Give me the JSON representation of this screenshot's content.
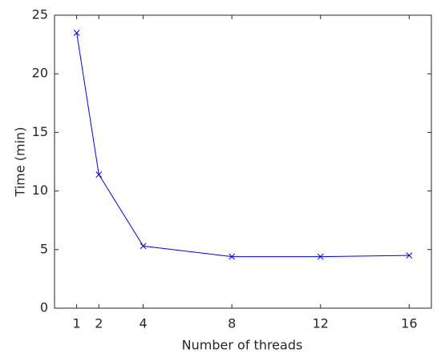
{
  "chart_data": {
    "type": "line",
    "x_label": "Number of threads",
    "y_label": "Time (min)",
    "series": [
      {
        "color": "#0000ff",
        "x": [
          1,
          2,
          4,
          8,
          12,
          16
        ],
        "values": [
          23.5,
          11.4,
          5.3,
          4.4,
          4.4,
          4.5
        ]
      }
    ],
    "xlim": [
      0,
      17
    ],
    "xticks": [
      1,
      2,
      4,
      8,
      12,
      16
    ],
    "ylim": [
      0,
      25
    ],
    "yticks": [
      0,
      5,
      10,
      15,
      20,
      25
    ],
    "grid": false,
    "marker": "x"
  }
}
